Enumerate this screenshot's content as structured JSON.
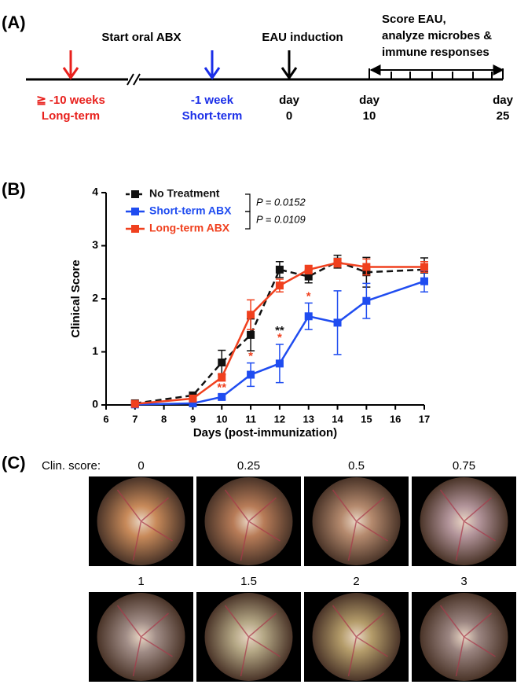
{
  "panel_a": {
    "label": "(A)",
    "top_texts": [
      "Start oral ABX",
      "EAU induction"
    ],
    "bracket_lines": [
      "Score EAU,",
      "analyze microbes &",
      "immune responses"
    ],
    "events": [
      {
        "lines": [
          "≧ -10 weeks",
          "Long-term"
        ],
        "color": "#e8201c",
        "arrow": true
      },
      {
        "lines": [
          "-1 week",
          "Short-term"
        ],
        "color": "#1a2ee8",
        "arrow": true
      },
      {
        "lines": [
          "day",
          "0"
        ],
        "color": "#000000",
        "arrow": true
      },
      {
        "lines": [
          "day",
          "10"
        ],
        "color": "#000000",
        "arrow": false
      },
      {
        "lines": [
          "day",
          "25"
        ],
        "color": "#000000",
        "arrow": false
      }
    ]
  },
  "chart_data": {
    "type": "line",
    "panel_label": "(B)",
    "x_label": "Days (post-immunization)",
    "y_label": "Clinical Score",
    "x": [
      7,
      9,
      10,
      11,
      12,
      13,
      14,
      15,
      17
    ],
    "xlim": [
      6,
      17
    ],
    "xticks": [
      6,
      7,
      8,
      9,
      10,
      11,
      12,
      13,
      14,
      15,
      16,
      17
    ],
    "ylim": [
      0,
      4
    ],
    "yticks": [
      0,
      1,
      2,
      3,
      4
    ],
    "series": [
      {
        "name": "No Treatment",
        "color": "#111111",
        "dashed": true,
        "values": [
          0.03,
          0.18,
          0.8,
          1.32,
          2.55,
          2.42,
          2.7,
          2.5,
          2.55
        ],
        "errors": [
          0.02,
          0.03,
          0.23,
          0.3,
          0.15,
          0.12,
          0.12,
          0.28,
          0.22
        ]
      },
      {
        "name": "Short-term ABX",
        "color": "#1f4cf0",
        "dashed": false,
        "values": [
          0.01,
          0.03,
          0.15,
          0.57,
          0.78,
          1.67,
          1.55,
          1.96,
          2.33
        ],
        "errors": [
          0.01,
          0.02,
          0.05,
          0.22,
          0.36,
          0.25,
          0.6,
          0.33,
          0.2
        ]
      },
      {
        "name": "Long-term ABX",
        "color": "#f0401e",
        "dashed": false,
        "values": [
          0.02,
          0.12,
          0.52,
          1.7,
          2.25,
          2.55,
          2.68,
          2.6,
          2.6
        ],
        "errors": [
          0.01,
          0.03,
          0.07,
          0.28,
          0.12,
          0.08,
          0.08,
          0.15,
          0.1
        ]
      }
    ],
    "comparisons": [
      "P = 0.0152",
      "P = 0.0109"
    ],
    "annotations": [
      {
        "x": 10,
        "marks": [
          {
            "text": "**",
            "color": "#f0401e"
          }
        ]
      },
      {
        "x": 11,
        "marks": [
          {
            "text": "*",
            "color": "#f0401e"
          }
        ]
      },
      {
        "x": 12,
        "marks": [
          {
            "text": "**",
            "color": "#111111"
          },
          {
            "text": "*",
            "color": "#f0401e"
          }
        ]
      },
      {
        "x": 13,
        "marks": [
          {
            "text": "*",
            "color": "#f0401e"
          }
        ]
      }
    ]
  },
  "panel_c": {
    "label": "(C)",
    "score_label": "Clin. score:",
    "scores": [
      0,
      0.25,
      0.5,
      0.75,
      1,
      1.5,
      2,
      3
    ]
  }
}
